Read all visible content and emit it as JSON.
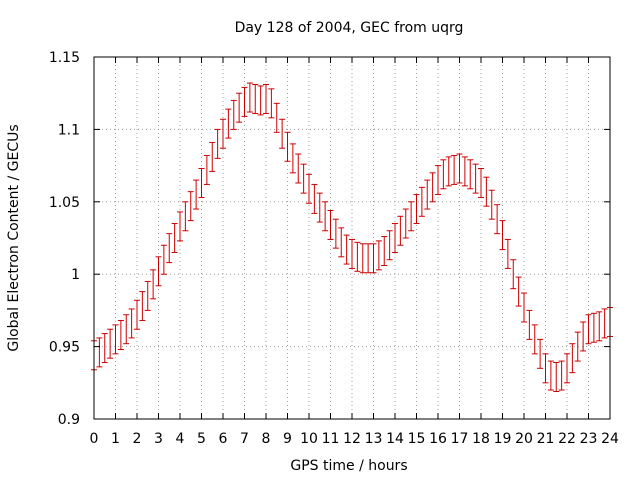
{
  "chart_data": {
    "type": "scatter",
    "title": "Day 128 of 2004, GEC from uqrg",
    "xlabel": "GPS time / hours",
    "ylabel": "Global Electron Content / GECUs",
    "xlim": [
      0,
      24
    ],
    "ylim": [
      0.9,
      1.15
    ],
    "xticks": [
      "0",
      "1",
      "2",
      "3",
      "4",
      "5",
      "6",
      "7",
      "8",
      "9",
      "10",
      "11",
      "12",
      "13",
      "14",
      "15",
      "16",
      "17",
      "18",
      "19",
      "20",
      "21",
      "22",
      "23",
      "24"
    ],
    "yticks": [
      "0.9",
      "0.95",
      "1",
      "1.05",
      "1.1",
      "1.15"
    ],
    "grid": true,
    "legend": "none",
    "series": [
      {
        "color": "#cc0000",
        "marker": "errorbar",
        "x": [
          0,
          0.25,
          0.5,
          0.75,
          1,
          1.25,
          1.5,
          1.75,
          2,
          2.25,
          2.5,
          2.75,
          3,
          3.25,
          3.5,
          3.75,
          4,
          4.25,
          4.5,
          4.75,
          5,
          5.25,
          5.5,
          5.75,
          6,
          6.25,
          6.5,
          6.75,
          7,
          7.25,
          7.5,
          7.75,
          8,
          8.25,
          8.5,
          8.75,
          9,
          9.25,
          9.5,
          9.75,
          10,
          10.25,
          10.5,
          10.75,
          11,
          11.25,
          11.5,
          11.75,
          12,
          12.25,
          12.5,
          12.75,
          13,
          13.25,
          13.5,
          13.75,
          14,
          14.25,
          14.5,
          14.75,
          15,
          15.25,
          15.5,
          15.75,
          16,
          16.25,
          16.5,
          16.75,
          17,
          17.25,
          17.5,
          17.75,
          18,
          18.25,
          18.5,
          18.75,
          19,
          19.25,
          19.5,
          19.75,
          20,
          20.25,
          20.5,
          20.75,
          21,
          21.25,
          21.5,
          21.75,
          22,
          22.25,
          22.5,
          22.75,
          23,
          23.25,
          23.5,
          23.75,
          24
        ],
        "y": [
          0.944,
          0.946,
          0.949,
          0.952,
          0.955,
          0.958,
          0.962,
          0.966,
          0.972,
          0.978,
          0.985,
          0.993,
          1.002,
          1.01,
          1.018,
          1.025,
          1.033,
          1.04,
          1.047,
          1.055,
          1.063,
          1.072,
          1.081,
          1.09,
          1.097,
          1.104,
          1.11,
          1.115,
          1.119,
          1.122,
          1.121,
          1.12,
          1.121,
          1.118,
          1.108,
          1.097,
          1.088,
          1.08,
          1.073,
          1.066,
          1.059,
          1.052,
          1.046,
          1.04,
          1.034,
          1.028,
          1.022,
          1.017,
          1.014,
          1.012,
          1.011,
          1.011,
          1.011,
          1.013,
          1.016,
          1.02,
          1.025,
          1.03,
          1.035,
          1.04,
          1.045,
          1.05,
          1.055,
          1.06,
          1.065,
          1.069,
          1.071,
          1.072,
          1.073,
          1.071,
          1.069,
          1.066,
          1.063,
          1.057,
          1.048,
          1.038,
          1.027,
          1.014,
          1.0,
          0.988,
          0.977,
          0.965,
          0.955,
          0.945,
          0.935,
          0.93,
          0.929,
          0.93,
          0.935,
          0.942,
          0.95,
          0.957,
          0.962,
          0.963,
          0.964,
          0.966,
          0.967
        ],
        "error": 0.01
      }
    ]
  }
}
